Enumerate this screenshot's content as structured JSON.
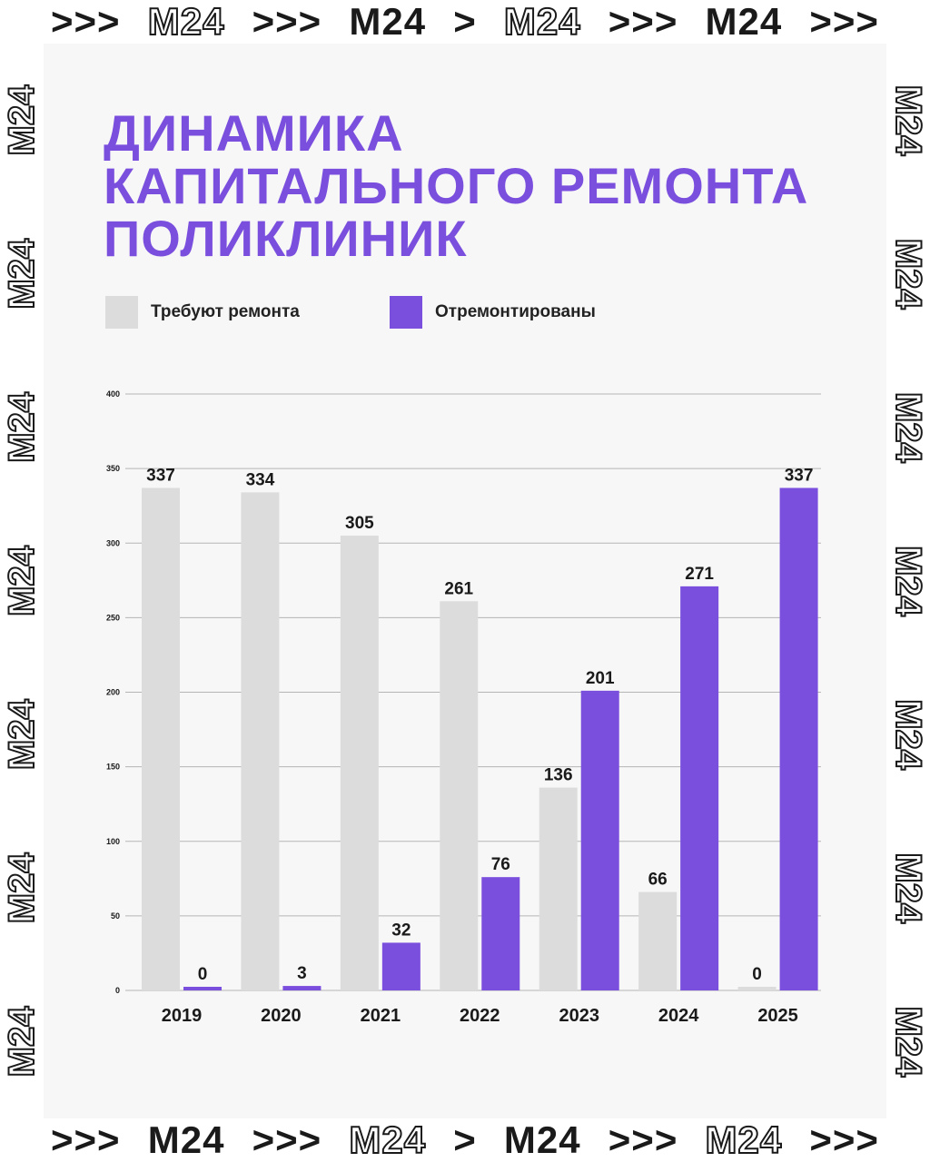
{
  "frame": {
    "top_tokens": [
      ">>>",
      "M24",
      ">>>",
      "M24",
      ">",
      "M24",
      ">>>",
      "M24",
      ">>>"
    ],
    "bottom_tokens": [
      ">>>",
      "M24",
      ">>>",
      "M24",
      ">",
      "M24",
      ">>>",
      "M24",
      ">>>"
    ],
    "side_text": "M24"
  },
  "colors": {
    "needs_repair": "#dcdcdc",
    "repaired": "#7b4fde",
    "title": "#7b4fde",
    "grid": "#b5b5b5",
    "text": "#1a1a1a"
  },
  "chart_data": {
    "type": "bar",
    "title": "ДИНАМИКА КАПИТАЛЬНОГО РЕМОНТА ПОЛИКЛИНИК",
    "title_lines": [
      "ДИНАМИКА",
      "КАПИТАЛЬНОГО РЕМОНТА",
      "ПОЛИКЛИНИК"
    ],
    "categories": [
      "2019",
      "2020",
      "2021",
      "2022",
      "2023",
      "2024",
      "2025"
    ],
    "series": [
      {
        "name": "Требуют ремонта",
        "values": [
          337,
          334,
          305,
          261,
          136,
          66,
          0
        ],
        "labels": [
          "337",
          "334",
          "305",
          "261",
          "136",
          "66",
          "0"
        ]
      },
      {
        "name": "Отремонтированы",
        "values": [
          0,
          3,
          32,
          76,
          201,
          271,
          337
        ],
        "labels": [
          "0",
          "3",
          "32",
          "76",
          "201",
          "271",
          "337"
        ]
      }
    ],
    "ylim": [
      0,
      400
    ],
    "yticks": [
      0,
      50,
      100,
      150,
      200,
      250,
      300,
      350,
      400
    ],
    "ytick_labels": [
      "0",
      "50",
      "100",
      "150",
      "200",
      "250",
      "300",
      "350",
      "400"
    ],
    "xlabel": "",
    "ylabel": "",
    "grid": true,
    "legend": "top-left"
  }
}
